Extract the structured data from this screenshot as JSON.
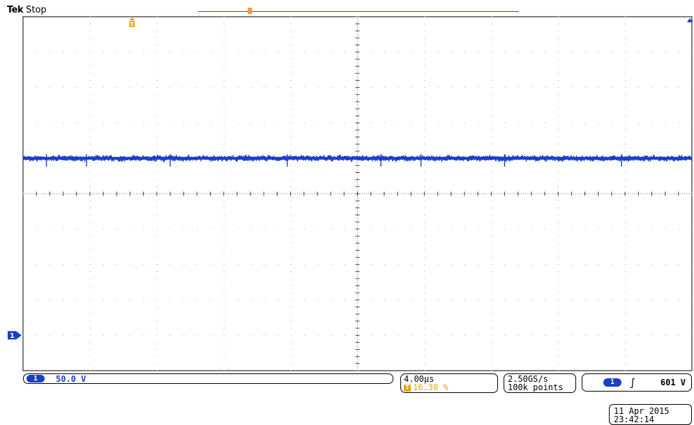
{
  "header": {
    "brand": "Tek",
    "state": "Stop"
  },
  "channel": {
    "badge": "1",
    "scale": "50.0 V",
    "color": "#1a3ec8"
  },
  "timebase": {
    "scale": "4.00µs",
    "trigger_position": "16.30 %",
    "trigger_icon": "T"
  },
  "acquisition": {
    "sample_rate": "2.50GS/s",
    "record_length": "100k points"
  },
  "trigger": {
    "source_badge": "1",
    "edge_icon": "rising-edge-icon",
    "edge_glyph": "∫",
    "level": "601 V"
  },
  "timestamp": {
    "date": "11 Apr 2015",
    "time": "23:42:14"
  },
  "chart_data": {
    "type": "line",
    "graticule": {
      "h_divisions": 10,
      "v_divisions": 10,
      "minor_per_division": 5,
      "grid": true
    },
    "time_per_division": "4.00µs",
    "volts_per_division": "50.0 V",
    "series": [
      {
        "name": "1",
        "color": "#1a3ec8",
        "level_divisions_above_ground": 5,
        "trace_noise_divisions": 0.07,
        "spike_times_divisions": [
          0.35,
          0.95,
          2.2,
          3.95,
          5.35,
          5.95,
          7.2,
          8.95
        ]
      }
    ],
    "markers": {
      "ground_level_divisions": 0,
      "trigger_position_percent": 16.3,
      "record_window_start_fraction": 0.275,
      "record_window_end_fraction": 0.74,
      "record_indicator_fraction": 0.35
    }
  }
}
